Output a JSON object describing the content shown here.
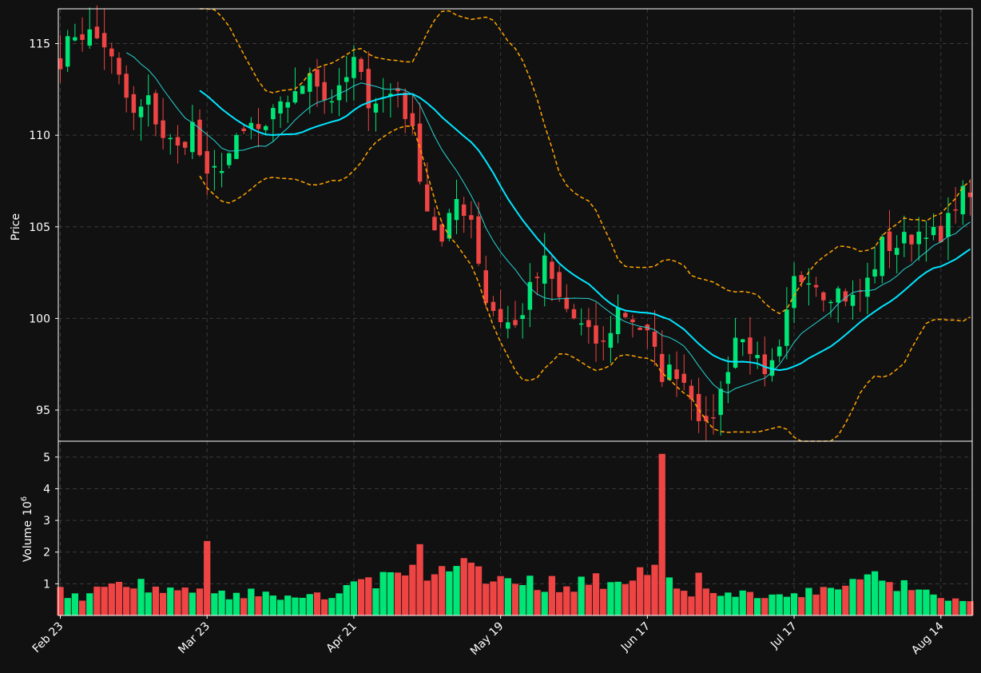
{
  "theme": {
    "background": "#111111",
    "axis_color": "#ffffff",
    "grid_color": "#3a3a3a",
    "up_color": "#00e676",
    "down_color": "#ef4444",
    "ma_fast_color": "#26d4d4",
    "ma_slow_color": "#00e5ff",
    "bollinger_color": "#ffa500"
  },
  "chart_data": {
    "type": "candlestick",
    "title": "",
    "ylabel": "Price",
    "volume_label": "Volume",
    "volume_exponent_label": "10",
    "volume_exponent_power": "6",
    "ylim": [
      93.3,
      116.9
    ],
    "volume_ylim": [
      0,
      5.5
    ],
    "yticks": [
      95,
      100,
      105,
      110,
      115
    ],
    "volume_yticks": [
      1,
      2,
      3,
      4,
      5
    ],
    "grid": true,
    "xticks": [
      {
        "label": "Feb 23",
        "index": 0
      },
      {
        "label": "Mar 23",
        "index": 20
      },
      {
        "label": "Apr 21",
        "index": 40
      },
      {
        "label": "May 19",
        "index": 60
      },
      {
        "label": "Jun 17",
        "index": 80
      },
      {
        "label": "Jul 17",
        "index": 100
      },
      {
        "label": "Aug 14",
        "index": 120
      }
    ],
    "candle_count": 125,
    "anchors": {
      "close": [
        [
          0,
          114.2
        ],
        [
          2,
          115.6
        ],
        [
          4,
          115.5
        ],
        [
          6,
          115.0
        ],
        [
          8,
          113.0
        ],
        [
          10,
          111.0
        ],
        [
          12,
          111.8
        ],
        [
          14,
          110.0
        ],
        [
          16,
          109.2
        ],
        [
          18,
          110.5
        ],
        [
          20,
          107.4
        ],
        [
          22,
          108.5
        ],
        [
          24,
          109.5
        ],
        [
          26,
          110.5
        ],
        [
          28,
          110.0
        ],
        [
          30,
          112.0
        ],
        [
          32,
          112.0
        ],
        [
          34,
          113.8
        ],
        [
          36,
          112.0
        ],
        [
          38,
          112.2
        ],
        [
          40,
          114.0
        ],
        [
          42,
          112.0
        ],
        [
          44,
          112.0
        ],
        [
          46,
          112.5
        ],
        [
          48,
          110.0
        ],
        [
          50,
          106.0
        ],
        [
          52,
          104.0
        ],
        [
          54,
          106.5
        ],
        [
          56,
          105.5
        ],
        [
          58,
          101.0
        ],
        [
          60,
          100.0
        ],
        [
          62,
          99.5
        ],
        [
          64,
          101.5
        ],
        [
          66,
          103.0
        ],
        [
          68,
          101.0
        ],
        [
          70,
          100.0
        ],
        [
          72,
          99.0
        ],
        [
          74,
          98.5
        ],
        [
          76,
          100.5
        ],
        [
          78,
          100.0
        ],
        [
          80,
          99.0
        ],
        [
          82,
          97.0
        ],
        [
          84,
          97.2
        ],
        [
          86,
          96.0
        ],
        [
          88,
          93.8
        ],
        [
          90,
          96.0
        ],
        [
          92,
          99.0
        ],
        [
          94,
          98.5
        ],
        [
          96,
          96.5
        ],
        [
          98,
          98.0
        ],
        [
          100,
          102.0
        ],
        [
          102,
          102.5
        ],
        [
          104,
          101.5
        ],
        [
          106,
          101.5
        ],
        [
          108,
          101.0
        ],
        [
          110,
          102.0
        ],
        [
          112,
          104.0
        ],
        [
          114,
          104.0
        ],
        [
          116,
          104.5
        ],
        [
          118,
          105.0
        ],
        [
          120,
          104.0
        ],
        [
          122,
          106.5
        ],
        [
          124,
          107.0
        ]
      ],
      "volume": [
        [
          0,
          0.9
        ],
        [
          1,
          0.55
        ],
        [
          4,
          0.7
        ],
        [
          9,
          0.9
        ],
        [
          19,
          0.85
        ],
        [
          20,
          2.35
        ],
        [
          21,
          0.7
        ],
        [
          37,
          0.55
        ],
        [
          48,
          1.6
        ],
        [
          49,
          2.25
        ],
        [
          50,
          1.1
        ],
        [
          57,
          1.55
        ],
        [
          58,
          1.0
        ],
        [
          62,
          1.0
        ],
        [
          75,
          1.05
        ],
        [
          78,
          1.1
        ],
        [
          81,
          1.6
        ],
        [
          82,
          5.1
        ],
        [
          83,
          1.2
        ],
        [
          86,
          0.6
        ],
        [
          87,
          1.35
        ],
        [
          88,
          0.85
        ],
        [
          96,
          0.55
        ],
        [
          100,
          0.7
        ],
        [
          104,
          0.9
        ],
        [
          112,
          1.1
        ],
        [
          116,
          0.8
        ],
        [
          120,
          0.55
        ],
        [
          124,
          0.45
        ]
      ]
    },
    "series": [
      {
        "name": "MA fast",
        "style": "thin",
        "start": 9
      },
      {
        "name": "MA slow",
        "style": "thick",
        "start": 19
      },
      {
        "name": "Bollinger band",
        "style": "dashed",
        "start": 19
      }
    ]
  }
}
